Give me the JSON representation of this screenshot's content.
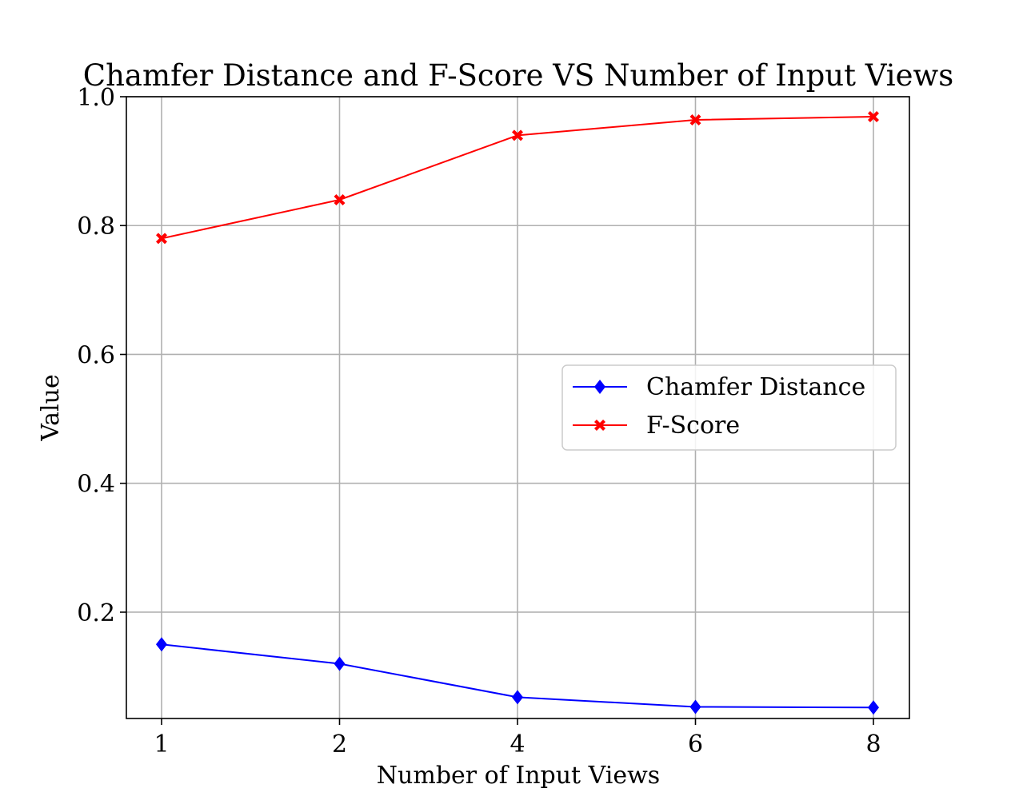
{
  "chart_data": {
    "type": "line",
    "title": "Chamfer Distance and F-Score VS Number of Input Views",
    "xlabel": "Number of Input Views",
    "ylabel": "Value",
    "categories": [
      "1",
      "2",
      "4",
      "6",
      "8"
    ],
    "y_ticks": [
      "0.2",
      "0.4",
      "0.6",
      "0.8",
      "1.0"
    ],
    "ylim": [
      0.035,
      1.0
    ],
    "grid": true,
    "legend_position": "center-right",
    "series": [
      {
        "name": "Chamfer Distance",
        "values": [
          0.15,
          0.12,
          0.068,
          0.053,
          0.052
        ],
        "color": "#0000ff",
        "marker": "diamond"
      },
      {
        "name": "F-Score",
        "values": [
          0.78,
          0.84,
          0.94,
          0.964,
          0.969
        ],
        "color": "#ff0000",
        "marker": "x-filled"
      }
    ]
  }
}
